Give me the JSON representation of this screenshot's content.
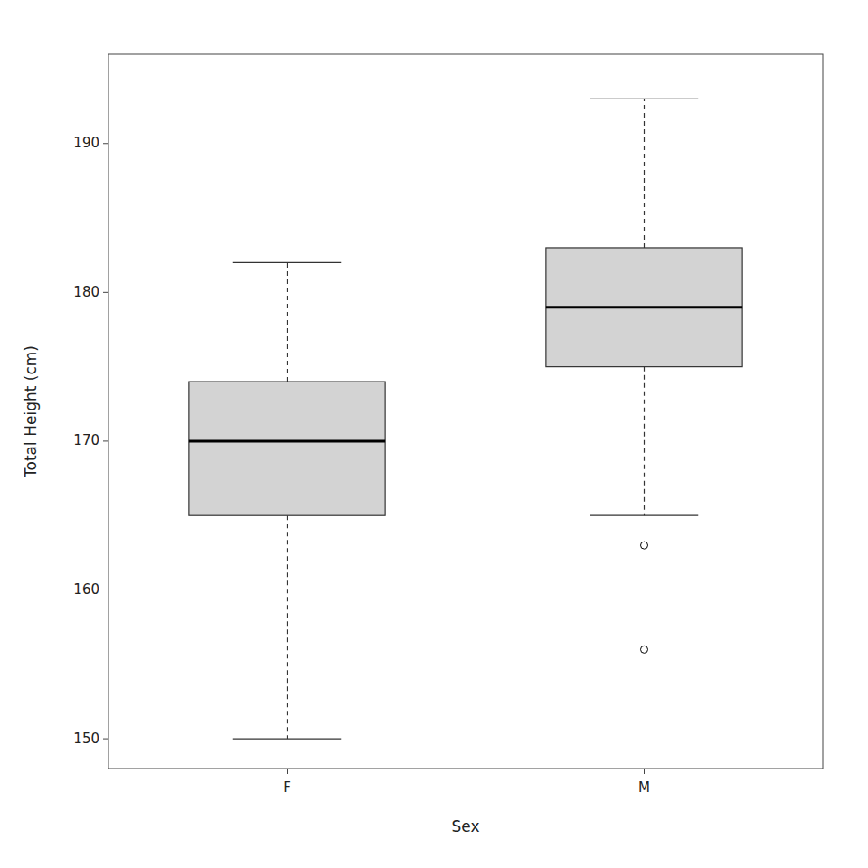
{
  "chart_data": {
    "type": "box",
    "xlabel": "Sex",
    "ylabel": "Total Height (cm)",
    "categories": [
      "F",
      "M"
    ],
    "boxes": [
      {
        "median": 170,
        "q1": 165,
        "q3": 174,
        "whisker_low": 150,
        "whisker_high": 182,
        "outliers": []
      },
      {
        "median": 179,
        "q1": 175,
        "q3": 183,
        "whisker_low": 165,
        "whisker_high": 193,
        "outliers": [
          163,
          156
        ]
      }
    ],
    "ylim": [
      148,
      196
    ],
    "yticks": [
      150,
      160,
      170,
      180,
      190
    ],
    "color": "#d3d3d3",
    "grid": false
  }
}
